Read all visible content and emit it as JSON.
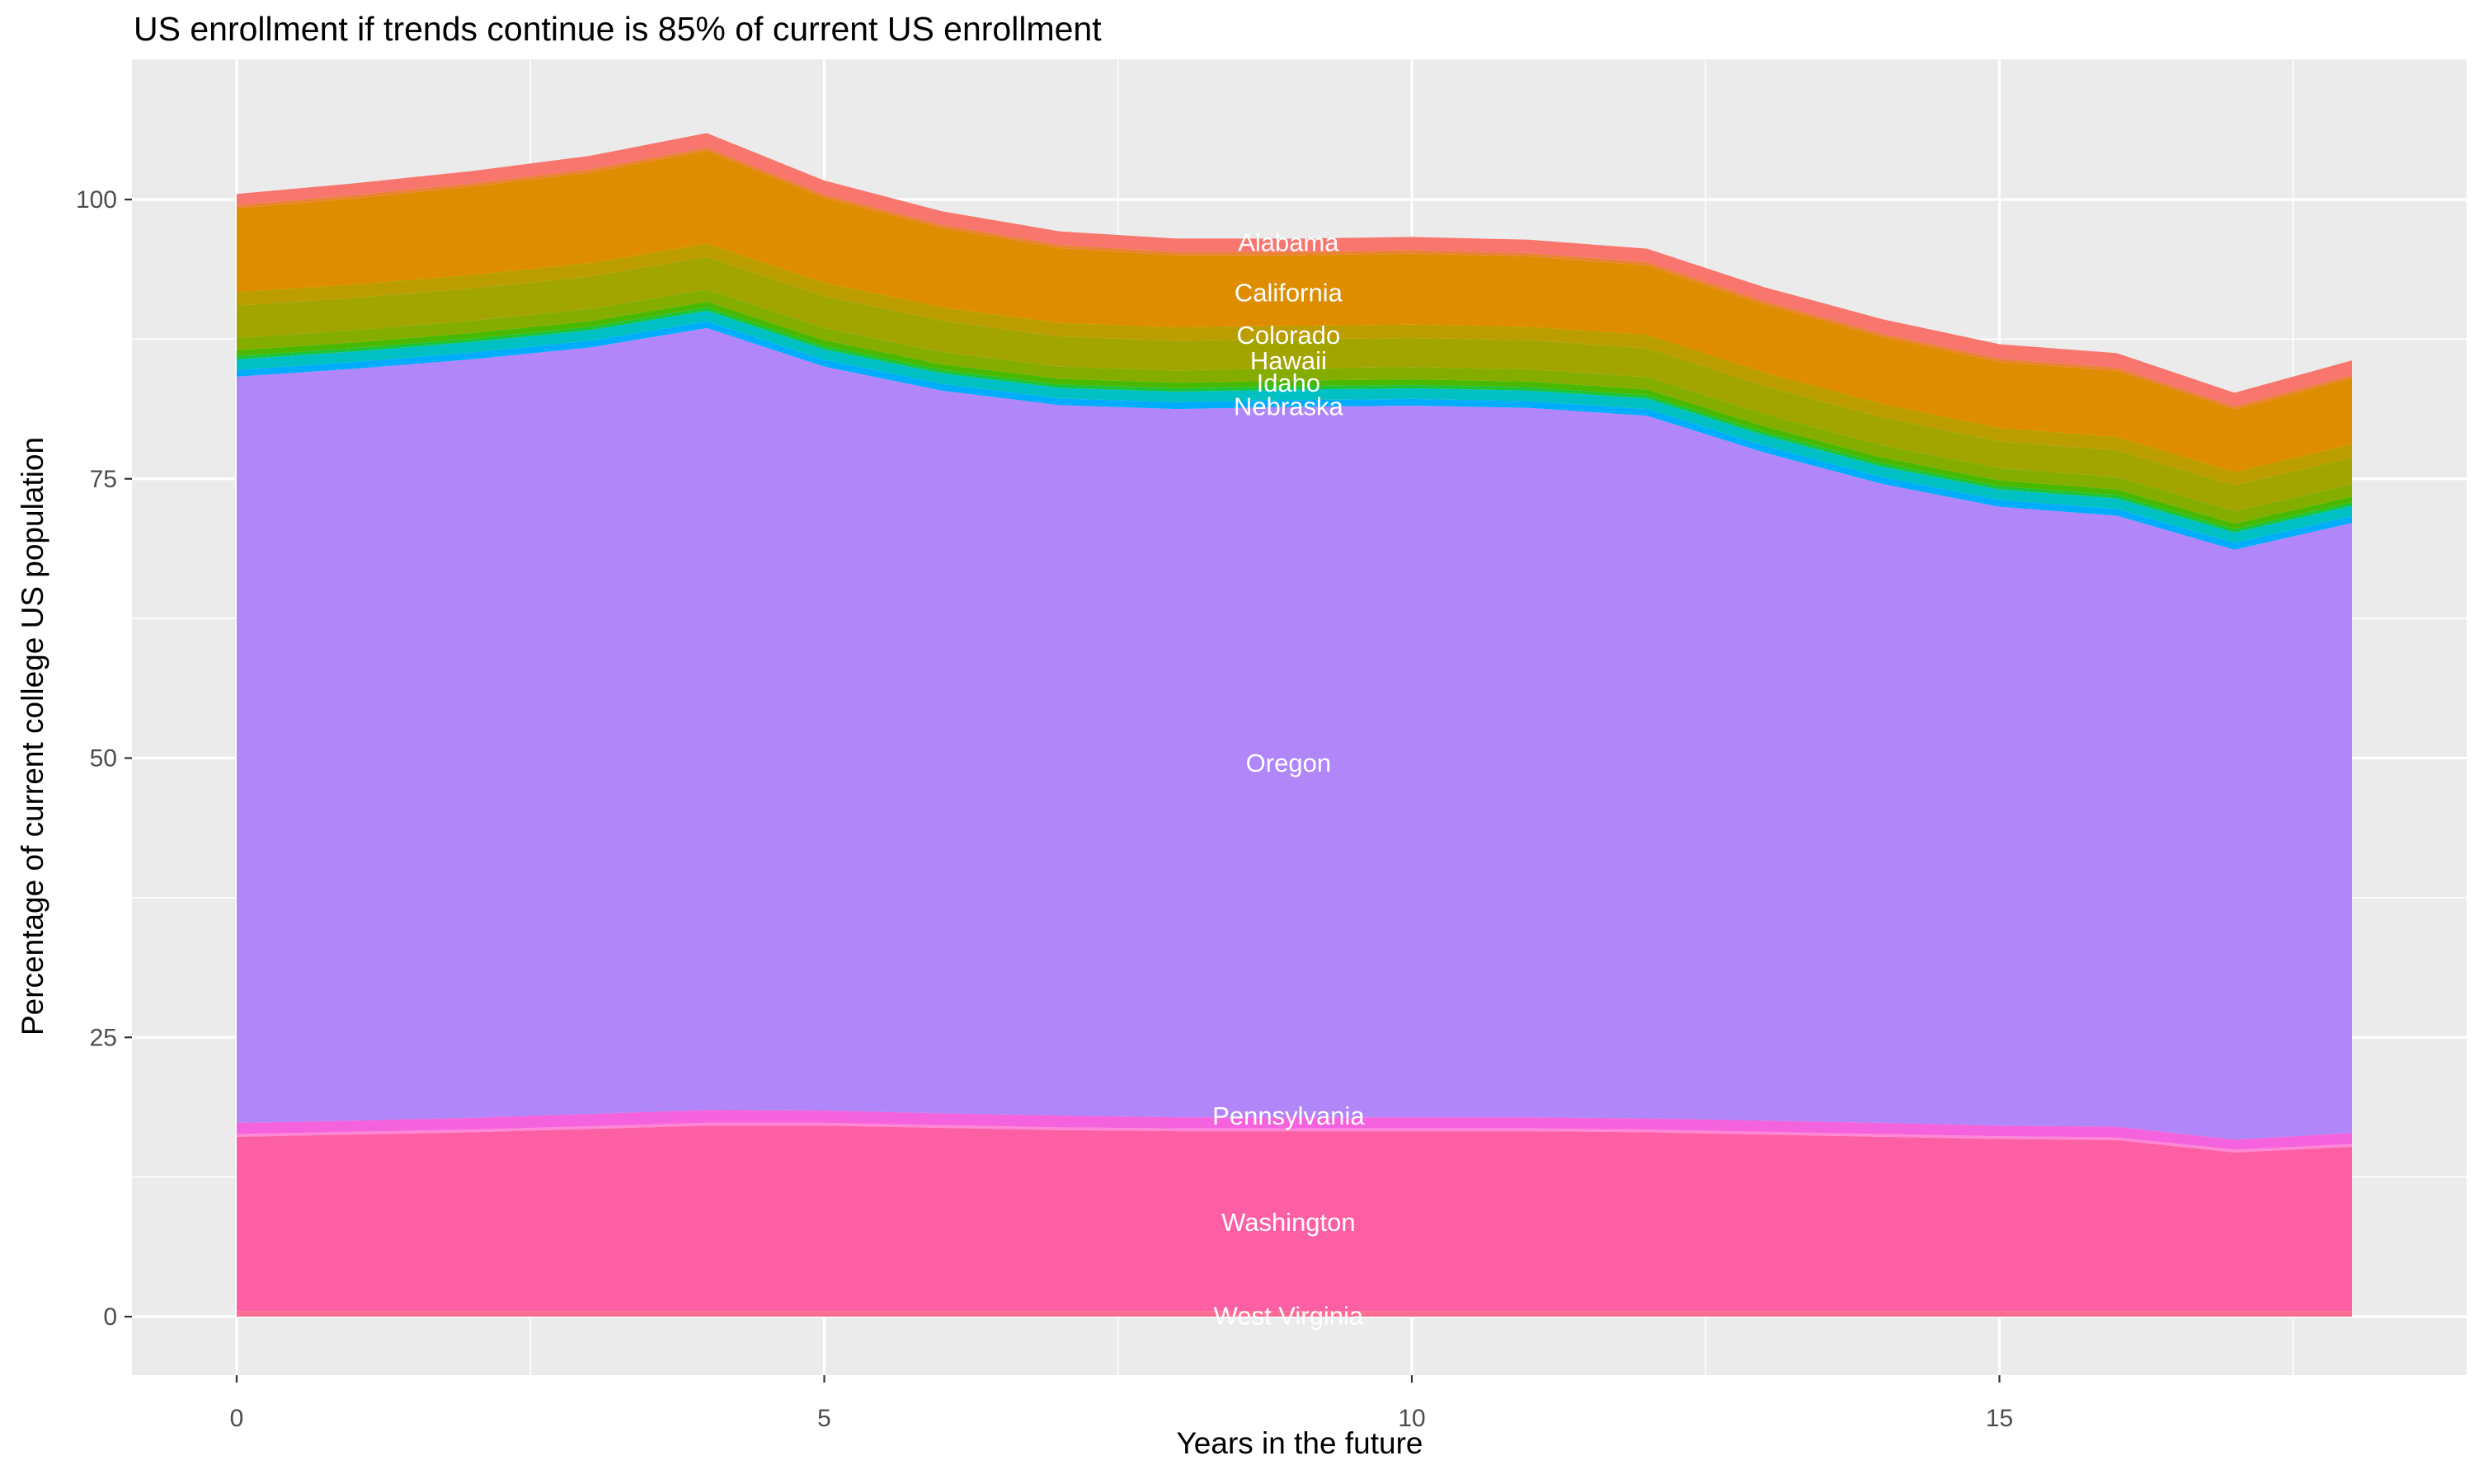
{
  "chart_data": {
    "type": "area",
    "stacked": true,
    "title": "US enrollment if trends continue is 85% of current US enrollment",
    "xlabel": "Years in the future",
    "ylabel": "Percentage of current college US population",
    "x": [
      0,
      1,
      2,
      3,
      4,
      5,
      6,
      7,
      8,
      9,
      10,
      11,
      12,
      13,
      14,
      15,
      16,
      17,
      18
    ],
    "x_ticks": [
      0,
      5,
      10,
      15
    ],
    "x_tick_labels": [
      "0",
      "5",
      "10",
      "15"
    ],
    "x_minor_ticks": [
      2.5,
      7.5,
      12.5,
      17.5
    ],
    "y_ticks": [
      0,
      25,
      50,
      75,
      100
    ],
    "y_tick_labels": [
      "0",
      "25",
      "50",
      "75",
      "100"
    ],
    "y_minor_ticks": [
      12.5,
      37.5,
      62.5,
      87.5
    ],
    "xlim": [
      -0.9,
      18.9
    ],
    "ylim": [
      -5.2,
      112.6
    ],
    "grid": true,
    "legend": "none",
    "series": [
      {
        "name": "West Virginia",
        "color": "#FF6C91",
        "values": [
          0.5,
          0.5,
          0.5,
          0.5,
          0.5,
          0.5,
          0.5,
          0.5,
          0.5,
          0.5,
          0.5,
          0.5,
          0.5,
          0.5,
          0.5,
          0.5,
          0.5,
          0.5,
          0.5
        ]
      },
      {
        "name": "Washington",
        "color": "#FC5FA3",
        "values": [
          15.6,
          15.8,
          16.0,
          16.3,
          16.6,
          16.6,
          16.4,
          16.2,
          16.1,
          16.1,
          16.1,
          16.1,
          16.0,
          15.8,
          15.6,
          15.4,
          15.3,
          14.2,
          14.7
        ]
      },
      {
        "name": "",
        "color": "#FF86D5",
        "values": [
          0.25,
          0.25,
          0.25,
          0.25,
          0.25,
          0.25,
          0.25,
          0.25,
          0.25,
          0.25,
          0.25,
          0.25,
          0.25,
          0.25,
          0.25,
          0.25,
          0.25,
          0.25,
          0.25
        ]
      },
      {
        "name": "Pennsylvania",
        "color": "#F562DE",
        "values": [
          1.0,
          1.0,
          1.05,
          1.1,
          1.15,
          1.1,
          1.05,
          1.05,
          1.0,
          1.0,
          1.0,
          1.0,
          1.0,
          1.0,
          1.0,
          0.95,
          0.95,
          0.9,
          1.0
        ]
      },
      {
        "name": "Oregon",
        "color": "#B186F8",
        "values": [
          66.8,
          67.3,
          67.9,
          68.6,
          70.0,
          66.6,
          64.7,
          63.6,
          63.4,
          63.6,
          63.7,
          63.5,
          62.9,
          59.8,
          57.2,
          55.4,
          54.7,
          52.8,
          54.6
        ]
      },
      {
        "name": "",
        "color": "#00ACFC",
        "values": [
          0.6,
          0.6,
          0.6,
          0.6,
          0.6,
          0.6,
          0.6,
          0.6,
          0.6,
          0.6,
          0.6,
          0.6,
          0.6,
          0.6,
          0.6,
          0.6,
          0.6,
          0.6,
          0.6
        ]
      },
      {
        "name": "Nebraska",
        "color": "#00C0C4",
        "values": [
          0.95,
          0.95,
          0.95,
          0.95,
          0.95,
          0.95,
          0.95,
          0.95,
          0.95,
          0.95,
          0.95,
          0.95,
          0.95,
          0.95,
          0.95,
          0.95,
          0.95,
          0.95,
          0.95
        ]
      },
      {
        "name": "",
        "color": "#1CC438",
        "values": [
          0.3,
          0.3,
          0.3,
          0.3,
          0.3,
          0.3,
          0.3,
          0.3,
          0.3,
          0.3,
          0.3,
          0.3,
          0.3,
          0.3,
          0.3,
          0.3,
          0.3,
          0.3,
          0.3
        ]
      },
      {
        "name": "Idaho",
        "color": "#48B800",
        "values": [
          0.5,
          0.5,
          0.5,
          0.5,
          0.5,
          0.5,
          0.5,
          0.5,
          0.5,
          0.5,
          0.5,
          0.5,
          0.5,
          0.5,
          0.5,
          0.5,
          0.5,
          0.5,
          0.5
        ]
      },
      {
        "name": "Hawaii",
        "color": "#85AD00",
        "values": [
          1.1,
          1.1,
          1.1,
          1.1,
          1.1,
          1.1,
          1.1,
          1.1,
          1.1,
          1.1,
          1.1,
          1.1,
          1.1,
          1.1,
          1.1,
          1.1,
          1.1,
          1.1,
          1.1
        ]
      },
      {
        "name": "Colorado",
        "color": "#A2A400",
        "values": [
          2.9,
          2.9,
          2.9,
          2.9,
          2.9,
          2.85,
          2.8,
          2.7,
          2.65,
          2.6,
          2.6,
          2.6,
          2.6,
          2.5,
          2.5,
          2.4,
          2.4,
          2.3,
          2.4
        ]
      },
      {
        "name": "",
        "color": "#BC9D00",
        "values": [
          1.2,
          1.2,
          1.2,
          1.2,
          1.2,
          1.2,
          1.2,
          1.2,
          1.2,
          1.2,
          1.2,
          1.2,
          1.2,
          1.2,
          1.2,
          1.2,
          1.2,
          1.2,
          1.2
        ]
      },
      {
        "name": "California",
        "color": "#DE8D00",
        "values": [
          7.5,
          7.7,
          7.9,
          8.1,
          8.3,
          7.6,
          7.1,
          6.7,
          6.45,
          6.3,
          6.35,
          6.3,
          6.2,
          6.1,
          6.0,
          5.9,
          5.9,
          5.6,
          5.9
        ]
      },
      {
        "name": "",
        "color": "#EB8335",
        "values": [
          0.3,
          0.3,
          0.3,
          0.3,
          0.3,
          0.3,
          0.3,
          0.3,
          0.3,
          0.3,
          0.3,
          0.3,
          0.3,
          0.3,
          0.3,
          0.3,
          0.3,
          0.3,
          0.3
        ]
      },
      {
        "name": "Alabama",
        "color": "#F8766D",
        "values": [
          1.0,
          1.05,
          1.1,
          1.2,
          1.3,
          1.25,
          1.2,
          1.2,
          1.2,
          1.2,
          1.2,
          1.2,
          1.2,
          1.25,
          1.3,
          1.3,
          1.3,
          1.2,
          1.3
        ]
      }
    ],
    "area_labels": {
      "label_x": 8.95,
      "color": "#FFFFFF",
      "items": [
        {
          "text": "Alabama",
          "y": 96.2
        },
        {
          "text": "California",
          "y": 91.7
        },
        {
          "text": "Colorado",
          "y": 87.9
        },
        {
          "text": "Hawaii",
          "y": 85.6
        },
        {
          "text": "Idaho",
          "y": 83.6
        },
        {
          "text": "Nebraska",
          "y": 81.5
        },
        {
          "text": "Oregon",
          "y": 49.6
        },
        {
          "text": "Pennsylvania",
          "y": 18.0
        },
        {
          "text": "Washington",
          "y": 8.5
        },
        {
          "text": "West Virginia",
          "y": 0.1
        }
      ]
    },
    "style": {
      "panel_bg": "#EBEBEB",
      "grid_color": "#FFFFFF",
      "tick_label_color": "#4D4D4D",
      "tick_mark_color": "#333333",
      "title_color": "#000000"
    }
  }
}
